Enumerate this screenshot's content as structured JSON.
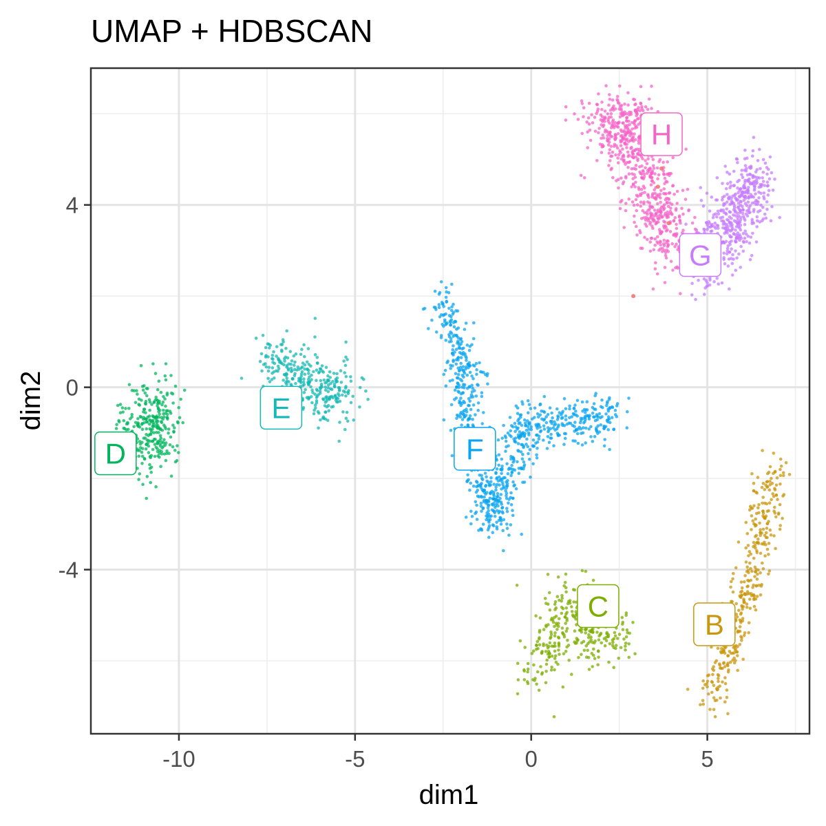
{
  "chart_data": {
    "type": "scatter",
    "title": "UMAP + HDBSCAN",
    "xlabel": "dim1",
    "ylabel": "dim2",
    "xlim": [
      -12.5,
      7.9
    ],
    "ylim": [
      -7.6,
      7.0
    ],
    "x_ticks": [
      -10,
      -5,
      0,
      5
    ],
    "x_tick_labels": [
      "-10",
      "-5",
      "0",
      "5"
    ],
    "y_ticks": [
      -4,
      0,
      4
    ],
    "y_tick_labels": [
      "-4",
      "0",
      "4"
    ],
    "grid": true,
    "legend": "none",
    "clusters": [
      {
        "label": "B",
        "color": "#c9960c",
        "label_x": 5.2,
        "label_y": -5.2,
        "spine": [
          [
            5.0,
            -6.9
          ],
          [
            5.7,
            -5.6
          ],
          [
            6.2,
            -4.4
          ],
          [
            6.5,
            -3.2
          ],
          [
            6.9,
            -1.8
          ]
        ],
        "spread": 0.22,
        "n": 380
      },
      {
        "label": "C",
        "color": "#7cae00",
        "label_x": 1.9,
        "label_y": -4.8,
        "spine": [
          [
            0.2,
            -6.3
          ],
          [
            0.5,
            -5.6
          ],
          [
            1.1,
            -4.6
          ],
          [
            1.7,
            -5.6
          ],
          [
            2.7,
            -5.5
          ]
        ],
        "spread": 0.32,
        "n": 330
      },
      {
        "label": "D",
        "color": "#00b65c",
        "label_x": -11.8,
        "label_y": -1.45,
        "spine": [
          [
            -11.2,
            -0.4
          ],
          [
            -10.6,
            -0.9
          ],
          [
            -11.0,
            -1.4
          ],
          [
            -10.4,
            -0.3
          ]
        ],
        "spread": 0.42,
        "n": 300
      },
      {
        "label": "E",
        "color": "#14b8b4",
        "label_x": -7.1,
        "label_y": -0.45,
        "spine": [
          [
            -7.5,
            0.6
          ],
          [
            -6.6,
            0.3
          ],
          [
            -5.8,
            -0.1
          ],
          [
            -5.2,
            -0.3
          ]
        ],
        "spread": 0.32,
        "n": 320
      },
      {
        "label": "F",
        "color": "#0aa4f0",
        "label_x": -1.6,
        "label_y": -1.35,
        "spine": [
          [
            -2.6,
            1.9
          ],
          [
            -2.0,
            0.7
          ],
          [
            -1.8,
            -0.8
          ],
          [
            -1.5,
            -1.8
          ],
          [
            -1.1,
            -2.9
          ],
          [
            -0.2,
            -0.8
          ],
          [
            1.0,
            -0.8
          ],
          [
            2.4,
            -0.6
          ]
        ],
        "spread": 0.26,
        "n": 900
      },
      {
        "label": "G",
        "color": "#c77cff",
        "label_x": 4.8,
        "label_y": 2.9,
        "spine": [
          [
            4.9,
            2.4
          ],
          [
            5.2,
            3.4
          ],
          [
            5.8,
            3.9
          ],
          [
            6.4,
            4.6
          ],
          [
            5.5,
            3.0
          ]
        ],
        "spread": 0.32,
        "n": 520
      },
      {
        "label": "H",
        "color": "#f564c8",
        "label_x": 3.7,
        "label_y": 5.55,
        "spine": [
          [
            1.6,
            5.8
          ],
          [
            2.4,
            5.9
          ],
          [
            3.0,
            5.0
          ],
          [
            3.6,
            3.8
          ],
          [
            4.0,
            3.1
          ],
          [
            2.8,
            6.1
          ],
          [
            2.2,
            5.0
          ]
        ],
        "spread": 0.36,
        "n": 700
      }
    ],
    "outliers": [
      {
        "x": 3.7,
        "y": 4.8,
        "color": "#f26d6d"
      },
      {
        "x": 3.6,
        "y": 4.4,
        "color": "#f26d6d"
      },
      {
        "x": 3.9,
        "y": 3.6,
        "color": "#f26d6d"
      },
      {
        "x": 2.9,
        "y": 2.0,
        "color": "#f26d6d"
      }
    ]
  }
}
